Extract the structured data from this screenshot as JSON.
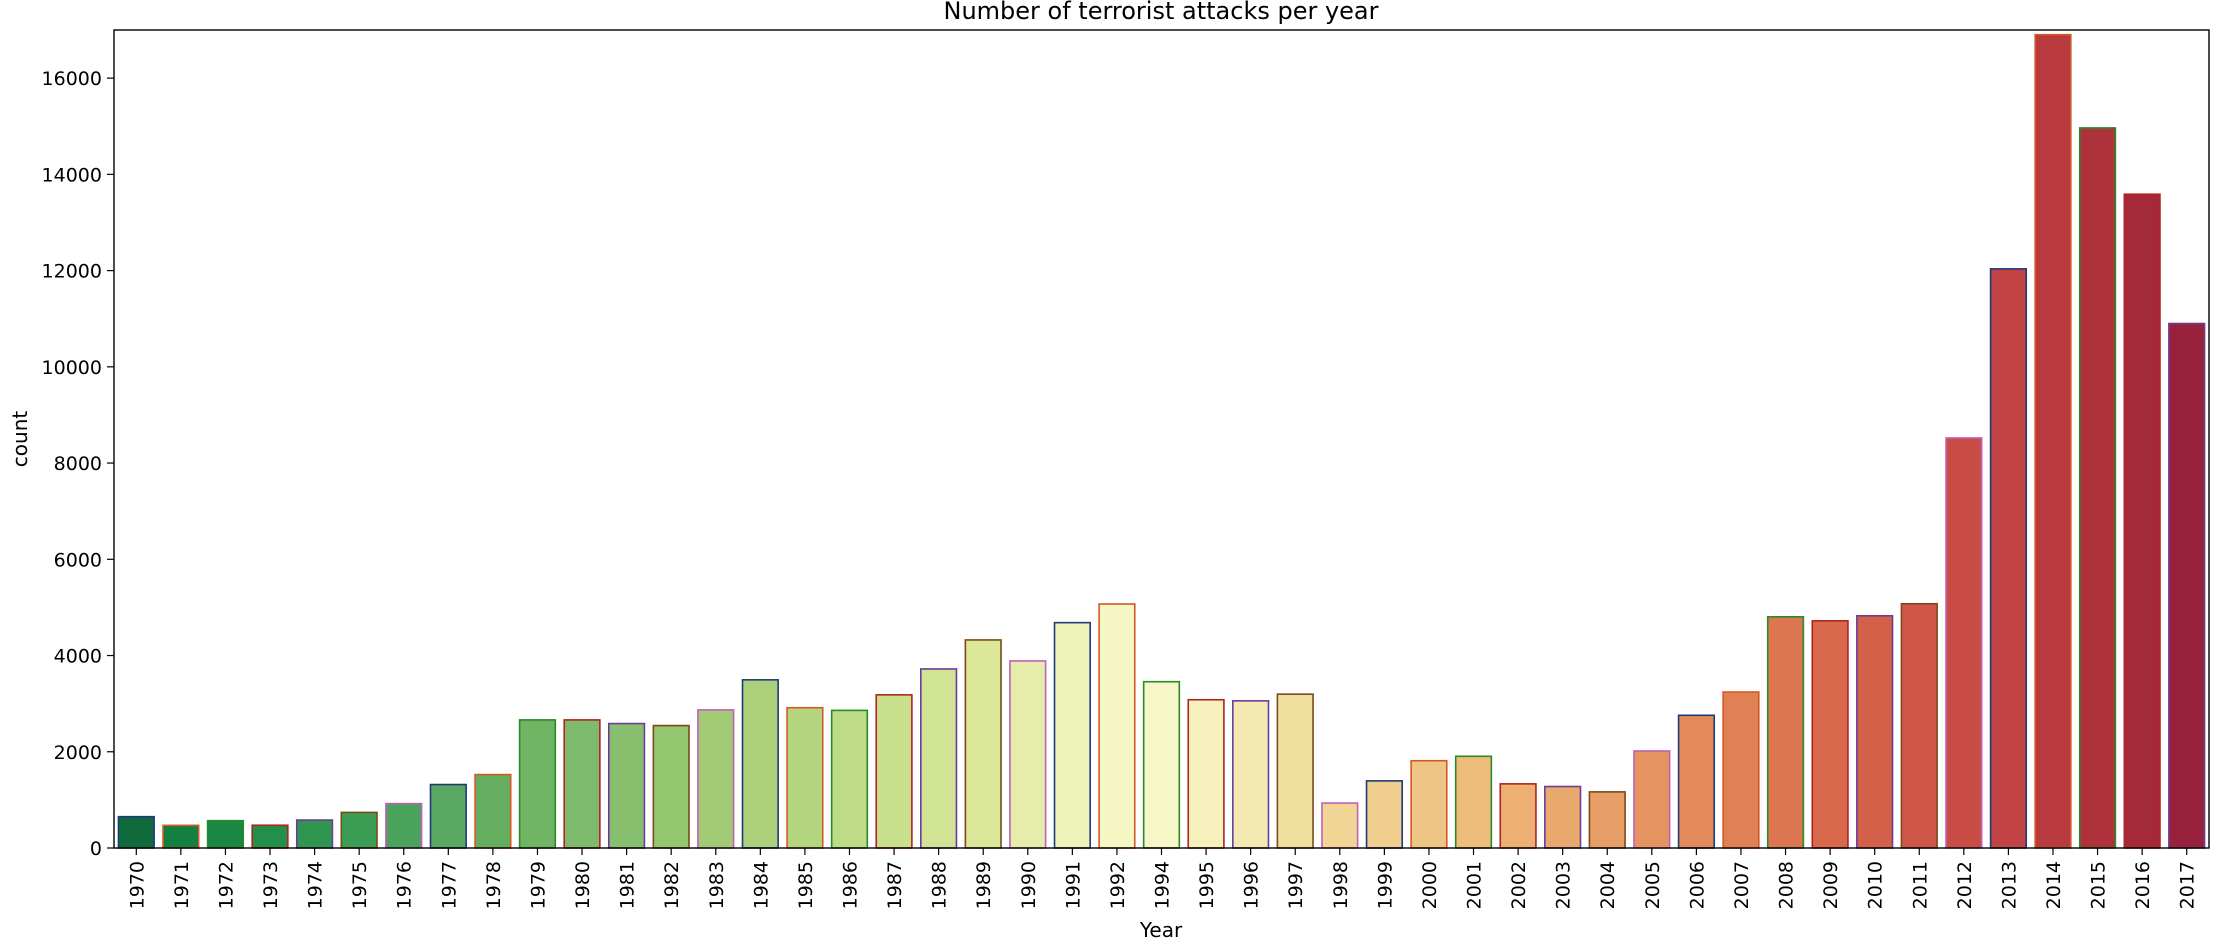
{
  "chart_data": {
    "type": "bar",
    "title": "Number of terrorist attacks per year",
    "xlabel": "Year",
    "ylabel": "count",
    "ylim": [
      0,
      17000
    ],
    "yticks": [
      0,
      2000,
      4000,
      6000,
      8000,
      10000,
      12000,
      14000,
      16000
    ],
    "grid": false,
    "categories": [
      "1970",
      "1971",
      "1972",
      "1973",
      "1974",
      "1975",
      "1976",
      "1977",
      "1978",
      "1979",
      "1980",
      "1981",
      "1982",
      "1983",
      "1984",
      "1985",
      "1986",
      "1987",
      "1988",
      "1989",
      "1990",
      "1991",
      "1992",
      "1994",
      "1995",
      "1996",
      "1997",
      "1998",
      "1999",
      "2000",
      "2001",
      "2002",
      "2003",
      "2004",
      "2005",
      "2006",
      "2007",
      "2008",
      "2009",
      "2010",
      "2011",
      "2012",
      "2013",
      "2014",
      "2015",
      "2016",
      "2017"
    ],
    "values": [
      651,
      471,
      568,
      473,
      581,
      740,
      923,
      1319,
      1526,
      2662,
      2662,
      2586,
      2544,
      2870,
      3495,
      2915,
      2860,
      3183,
      3721,
      4324,
      3887,
      4683,
      5071,
      3456,
      3081,
      3058,
      3197,
      934,
      1395,
      1814,
      1906,
      1333,
      1278,
      1166,
      2017,
      2758,
      3242,
      4805,
      4721,
      4826,
      5076,
      8522,
      12036,
      16903,
      14965,
      13587,
      10900
    ],
    "bar_colors": [
      "#0f6b3c",
      "#157f40",
      "#1a8844",
      "#22904a",
      "#2f9650",
      "#3c9d55",
      "#4aa35a",
      "#58a862",
      "#65ae5f",
      "#6fb564",
      "#7dba6b",
      "#88bf6f",
      "#94c56f",
      "#a0cb74",
      "#abd079",
      "#b4d580",
      "#bedb87",
      "#c8df8c",
      "#d1e493",
      "#dbe89a",
      "#e4edaa",
      "#edf3b8",
      "#f4f7c4",
      "#f6f6c6",
      "#f5f0bc",
      "#f4eab1",
      "#f1dfa0",
      "#f1d595",
      "#f0ce8d",
      "#efc585",
      "#eebd7c",
      "#ebb072",
      "#e9a86c",
      "#e79f67",
      "#e5945f",
      "#e38a5a",
      "#e08055",
      "#dd7550",
      "#d9694c",
      "#d56049",
      "#d05747",
      "#c94d45",
      "#c24343",
      "#b93b3f",
      "#ae323c",
      "#a42939",
      "#98223c"
    ],
    "edge_colors": [
      "#1f3a7a",
      "#d25a22",
      "#2a8a2a",
      "#b22222",
      "#6a3d9a",
      "#7a4a1a",
      "#c260b8",
      "#1f3a7a",
      "#d25a22",
      "#2a8a2a",
      "#b22222",
      "#6a3d9a",
      "#7a4a1a",
      "#c260b8",
      "#1f3a7a",
      "#d25a22",
      "#2a8a2a",
      "#b22222",
      "#6a3d9a",
      "#7a4a1a",
      "#c260b8",
      "#1f3a7a",
      "#d25a22",
      "#2a8a2a",
      "#b22222",
      "#6a3d9a",
      "#7a4a1a",
      "#c260b8",
      "#1f3a7a",
      "#d25a22",
      "#2a8a2a",
      "#b22222",
      "#6a3d9a",
      "#7a4a1a",
      "#c260b8",
      "#1f3a7a",
      "#d25a22",
      "#2a8a2a",
      "#b22222",
      "#6a3d9a",
      "#7a4a1a",
      "#c260b8",
      "#1f3a7a",
      "#d25a22",
      "#2a8a2a",
      "#b22222",
      "#6a3d9a"
    ]
  }
}
